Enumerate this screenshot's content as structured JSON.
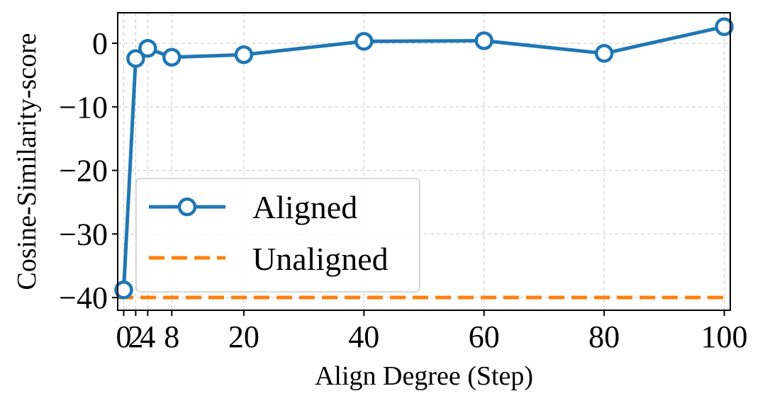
{
  "chart_data": {
    "type": "line",
    "xlabel": "Align Degree (Step)",
    "ylabel": "Cosine-Similarity-score",
    "xlim": [
      -1,
      101
    ],
    "ylim": [
      -42,
      4.8
    ],
    "xticks": [
      0,
      2,
      4,
      8,
      20,
      40,
      60,
      80,
      100
    ],
    "xtick_labels": [
      "0",
      "2",
      "4",
      "8",
      "20",
      "40",
      "60",
      "80",
      "100"
    ],
    "yticks": [
      0,
      -10,
      -20,
      -30,
      -40
    ],
    "ytick_labels": [
      "0",
      "−10",
      "−20",
      "−30",
      "−40"
    ],
    "grid": true,
    "legend_position": "center-left",
    "series": [
      {
        "name": "Aligned",
        "color": "#1f77b4",
        "linestyle": "solid",
        "marker": "open-circle",
        "x": [
          0,
          2,
          4,
          8,
          20,
          40,
          60,
          80,
          100
        ],
        "y": [
          -38.8,
          -2.4,
          -0.8,
          -2.2,
          -1.8,
          0.3,
          0.4,
          -1.6,
          2.6
        ]
      },
      {
        "name": "Unaligned",
        "color": "#ff7f0e",
        "linestyle": "dashed",
        "marker": "none",
        "x": [
          -1,
          101
        ],
        "y": [
          -40,
          -40
        ]
      }
    ]
  }
}
